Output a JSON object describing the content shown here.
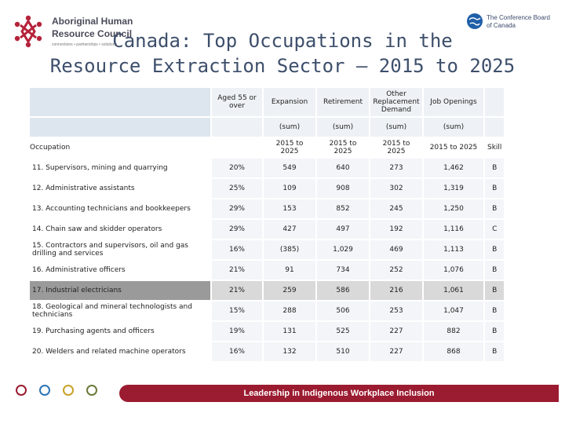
{
  "logo_left": {
    "line1": "Aboriginal Human",
    "line2": "Resource Council",
    "tagline": "connections • partnerships • solutions"
  },
  "logo_right": {
    "line1": "The Conference Board",
    "line2": "of Canada"
  },
  "title_line1": "Canada: Top Occupations in the",
  "title_line2": "Resource Extraction Sector – 2015 to 2025",
  "header": {
    "aged": "Aged 55 or over",
    "expansion": "Expansion",
    "retirement": "Retirement",
    "other_replacement": "Other Replacement Demand",
    "job_openings": "Job Openings",
    "sum": "(sum)",
    "occupation": "Occupation",
    "period": "2015 to 2025",
    "skill": "Skill"
  },
  "rows": [
    {
      "occupation": "11. Supervisors, mining and quarrying",
      "aged": "20%",
      "expansion": "549",
      "retirement": "640",
      "other": "273",
      "openings": "1,462",
      "skill": "B"
    },
    {
      "occupation": "12. Administrative assistants",
      "aged": "25%",
      "expansion": "109",
      "retirement": "908",
      "other": "302",
      "openings": "1,319",
      "skill": "B"
    },
    {
      "occupation": "13. Accounting technicians and bookkeepers",
      "aged": "29%",
      "expansion": "153",
      "retirement": "852",
      "other": "245",
      "openings": "1,250",
      "skill": "B"
    },
    {
      "occupation": "14. Chain saw and skidder operators",
      "aged": "29%",
      "expansion": "427",
      "retirement": "497",
      "other": "192",
      "openings": "1,116",
      "skill": "C"
    },
    {
      "occupation": "15. Contractors and supervisors, oil and gas drilling and services",
      "aged": "16%",
      "expansion": "(385)",
      "retirement": "1,029",
      "other": "469",
      "openings": "1,113",
      "skill": "B"
    },
    {
      "occupation": "16. Administrative officers",
      "aged": "21%",
      "expansion": "91",
      "retirement": "734",
      "other": "252",
      "openings": "1,076",
      "skill": "B"
    },
    {
      "occupation": "17. Industrial electricians",
      "aged": "21%",
      "expansion": "259",
      "retirement": "586",
      "other": "216",
      "openings": "1,061",
      "skill": "B"
    },
    {
      "occupation": "18. Geological and mineral technologists and technicians",
      "aged": "15%",
      "expansion": "288",
      "retirement": "506",
      "other": "253",
      "openings": "1,047",
      "skill": "B"
    },
    {
      "occupation": "19. Purchasing agents and officers",
      "aged": "19%",
      "expansion": "131",
      "retirement": "525",
      "other": "227",
      "openings": "882",
      "skill": "B"
    },
    {
      "occupation": "20. Welders and related machine operators",
      "aged": "16%",
      "expansion": "132",
      "retirement": "510",
      "other": "227",
      "openings": "868",
      "skill": "B"
    }
  ],
  "footer": {
    "banner": "Leadership in Indigenous Workplace Inclusion",
    "circle_colors": [
      "#9b1b30",
      "#2e75b6",
      "#c9a227",
      "#6b7a3a"
    ]
  }
}
